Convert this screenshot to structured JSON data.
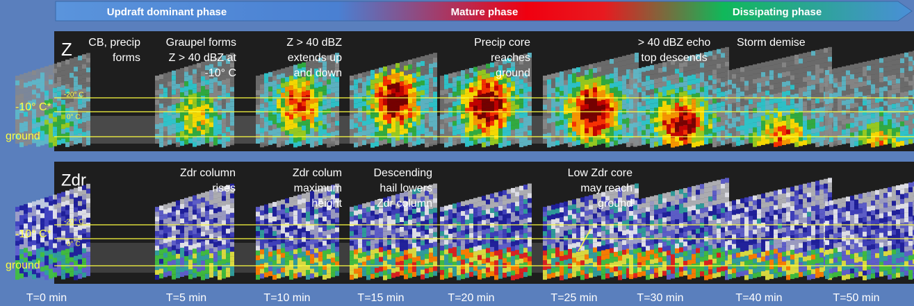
{
  "phases": [
    "Updraft dominant phase",
    "Mature phase",
    "Dissipating phase"
  ],
  "panels": [
    {
      "label": "Z",
      "annotations": [
        [
          "CB, precip",
          "forms"
        ],
        [
          "Graupel forms",
          "Z >  40 dBZ at",
          "-10° C"
        ],
        [
          "Z >  40 dBZ",
          "extends up",
          "and down"
        ],
        [
          "Precip core",
          "reaches",
          "ground"
        ],
        [
          "> 40 dBZ echo",
          "top descends"
        ],
        [
          "Storm demise"
        ]
      ]
    },
    {
      "label": "Zdr",
      "annotations": [
        [
          "Zdr column",
          "rises"
        ],
        [
          "Zdr colum",
          "maximum",
          "height"
        ],
        [
          "Descending",
          "hail lowers",
          "Zdr column"
        ],
        [
          "Low Zdr core",
          "may reach",
          "ground"
        ]
      ]
    }
  ],
  "levels": {
    "freeze": "-10° C*",
    "ground": "ground",
    "minus20": "-20° C",
    "zero": "0° C"
  },
  "times": [
    "T=0 min",
    "T=5 min",
    "T=10 min",
    "T=15 min",
    "T=20 min",
    "T=25 min",
    "T=30 min",
    "T=40 min",
    "T=50 min"
  ]
}
